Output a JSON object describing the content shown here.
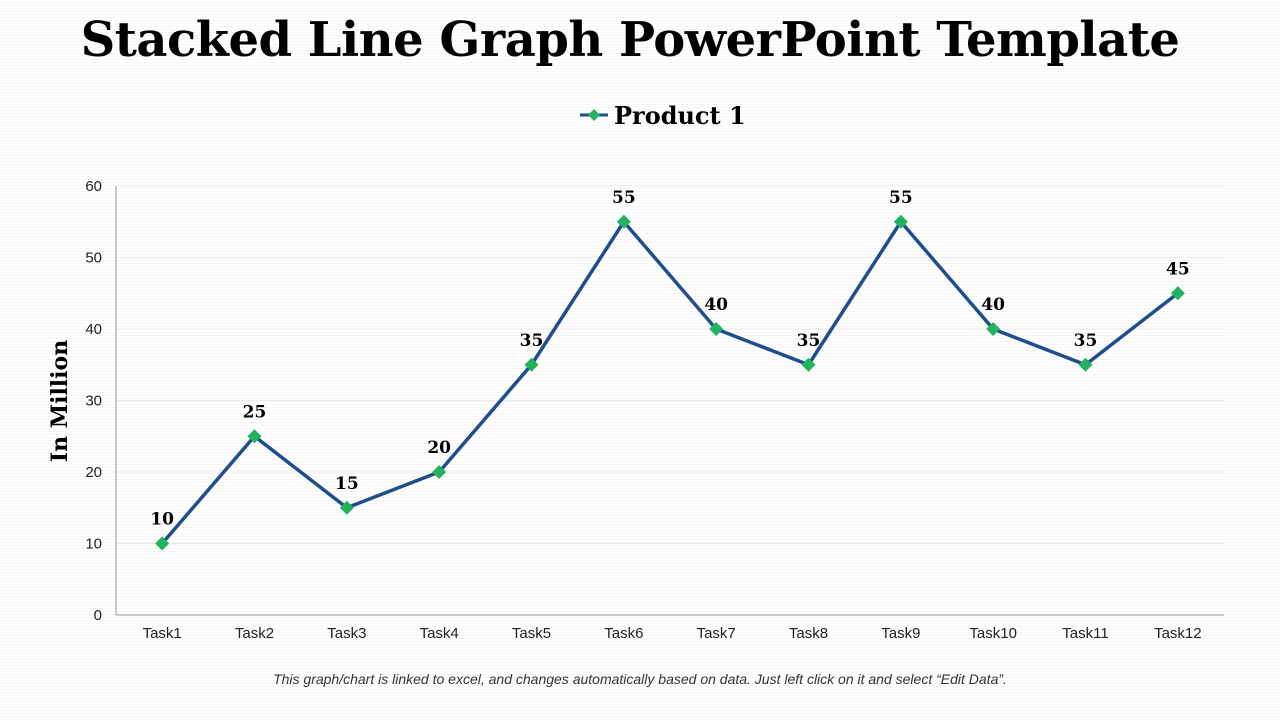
{
  "title": "Stacked Line Graph PowerPoint Template",
  "footnote": "This graph/chart is linked to excel, and changes automatically based on data.  Just left click on it and select “Edit Data”.",
  "colors": {
    "line": "#1f4e8c",
    "marker": "#22b35e",
    "axis": "#9a9a9a",
    "grid": "#ececec"
  },
  "chart_data": {
    "type": "line",
    "categories": [
      "Task1",
      "Task2",
      "Task3",
      "Task4",
      "Task5",
      "Task6",
      "Task7",
      "Task8",
      "Task9",
      "Task10",
      "Task11",
      "Task12"
    ],
    "series": [
      {
        "name": "Product 1",
        "values": [
          10,
          25,
          15,
          20,
          35,
          55,
          40,
          35,
          55,
          40,
          35,
          45
        ]
      }
    ],
    "ylabel": "In Million",
    "xlabel": "",
    "ylim": [
      0,
      60
    ],
    "yticks": [
      0,
      10,
      20,
      30,
      40,
      50,
      60
    ],
    "legend": "top-center",
    "grid": true,
    "data_labels": true
  }
}
